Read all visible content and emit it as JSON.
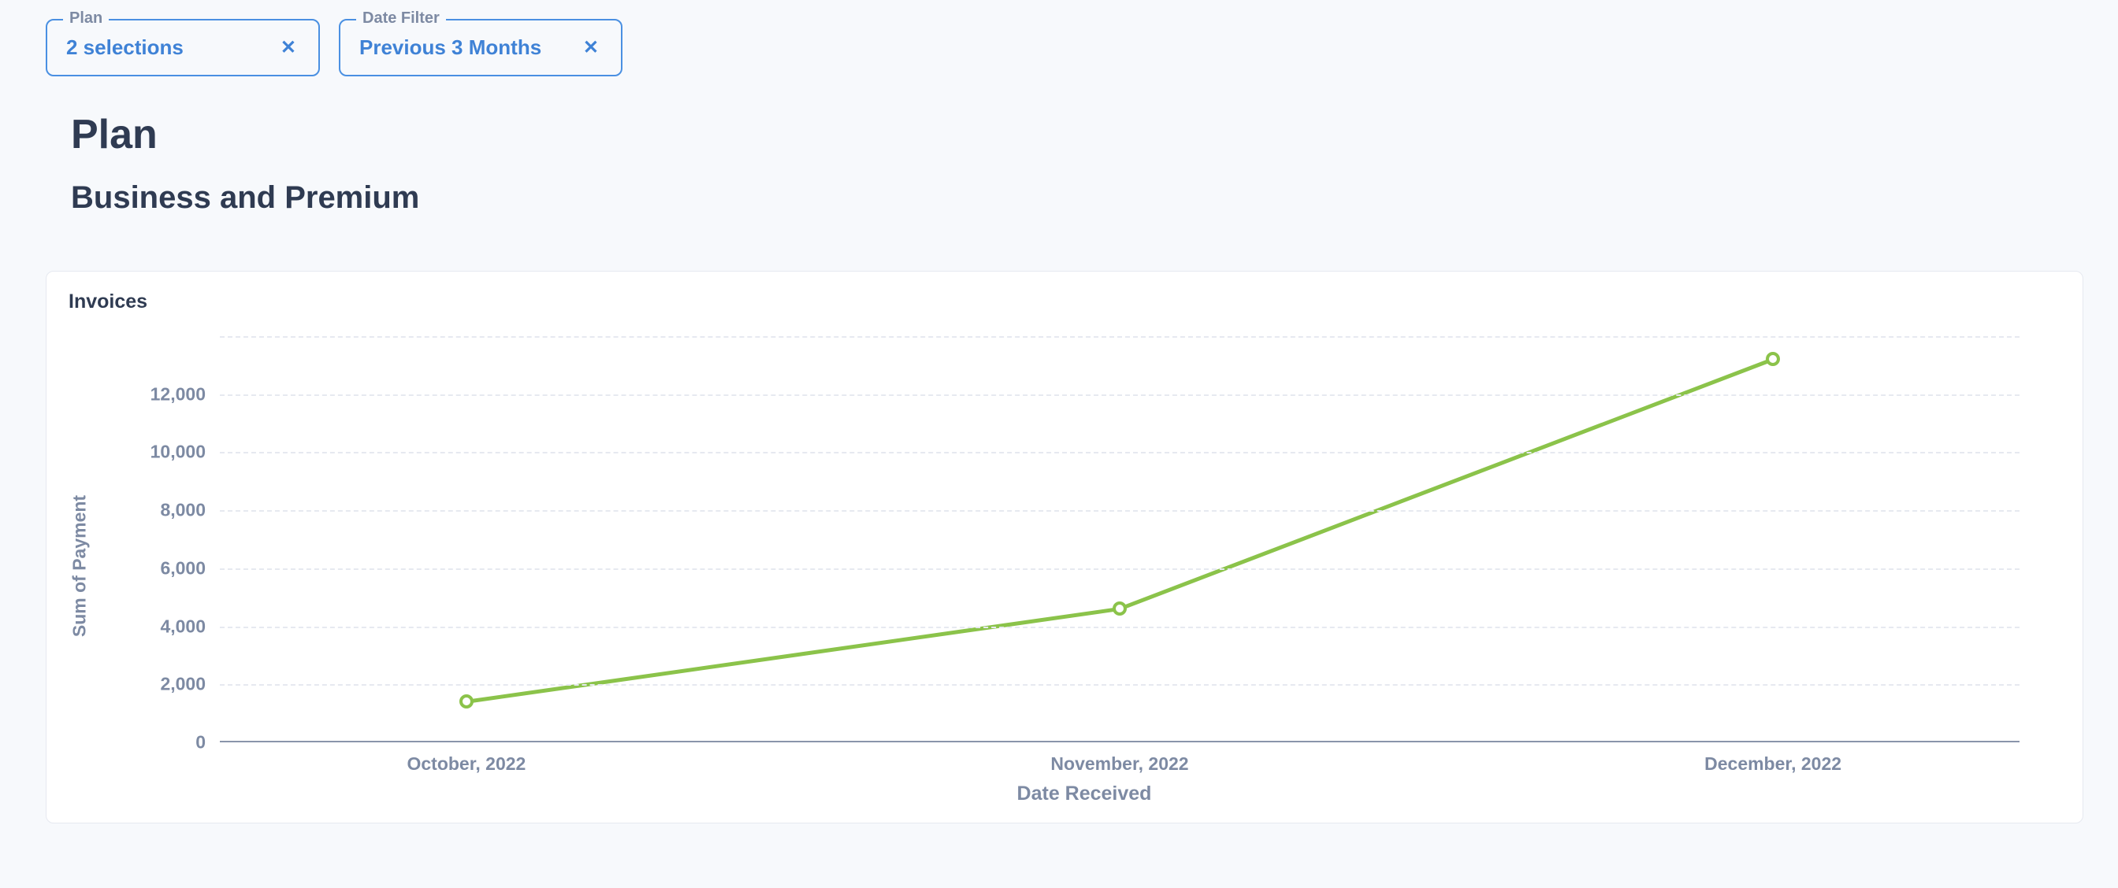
{
  "filters": {
    "plan": {
      "legend": "Plan",
      "value": "2 selections"
    },
    "date": {
      "legend": "Date Filter",
      "value": "Previous 3 Months"
    }
  },
  "heading": {
    "title": "Plan",
    "subtitle": "Business and Premium"
  },
  "chart": {
    "title": "Invoices",
    "type": "line",
    "x_axis_label": "Date Received",
    "y_axis_label": "Sum of Payment",
    "y_min": 0,
    "y_max": 14000,
    "y_ticks": [
      0,
      2000,
      4000,
      6000,
      8000,
      10000,
      12000
    ],
    "y_tick_labels": [
      "0",
      "2,000",
      "4,000",
      "6,000",
      "8,000",
      "10,000",
      "12,000"
    ],
    "grid_at": [
      2000,
      4000,
      6000,
      8000,
      10000,
      12000,
      14000
    ],
    "x_categories": [
      "October, 2022",
      "November, 2022",
      "December, 2022"
    ],
    "x_positions_pct": [
      13.7,
      50.0,
      86.3
    ],
    "values": [
      1400,
      4600,
      13200
    ],
    "line_color": "#8bc34a",
    "line_width": 5,
    "marker_fill": "#ffffff",
    "marker_stroke": "#8bc34a",
    "marker_stroke_width": 4,
    "marker_radius": 9,
    "background_color": "#ffffff",
    "grid_color": "#e6e9f0",
    "axis_color": "#8a95ab",
    "tick_label_color": "#7d8aa3",
    "tick_label_fontsize": 23
  },
  "colors": {
    "page_bg": "#f7f9fc",
    "card_bg": "#ffffff",
    "card_border": "#e6e9f0",
    "text_primary": "#2f3b52",
    "text_muted": "#7d8aa3",
    "accent": "#3f82d6",
    "chip_border": "#4a90e2"
  }
}
